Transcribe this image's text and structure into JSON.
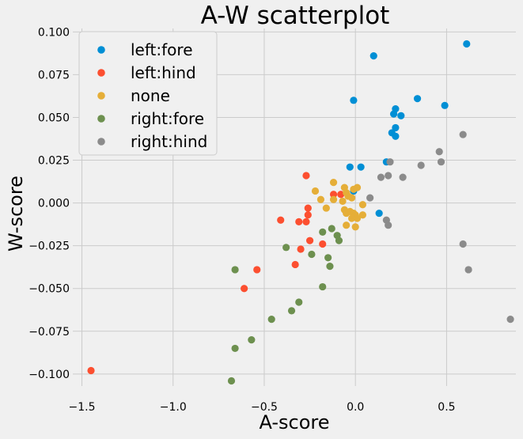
{
  "chart_data": {
    "type": "scatter",
    "title": "A-W scatterplot",
    "xlabel": "A-score",
    "ylabel": "W-score",
    "xlim": [
      -1.55,
      0.88
    ],
    "ylim": [
      -0.107,
      0.102
    ],
    "xticks": [
      -1.5,
      -1.0,
      -0.5,
      0.0,
      0.5
    ],
    "xtick_labels": [
      "−1.5",
      "−1.0",
      "−0.5",
      "0.0",
      "0.5"
    ],
    "yticks": [
      -0.1,
      -0.075,
      -0.05,
      -0.025,
      0.0,
      0.025,
      0.05,
      0.075,
      0.1
    ],
    "ytick_labels": [
      "−0.100",
      "−0.075",
      "−0.050",
      "−0.025",
      "0.000",
      "0.025",
      "0.050",
      "0.075",
      "0.100"
    ],
    "grid": true,
    "legend_position": "top-left",
    "series": [
      {
        "name": "left:fore",
        "color": "#008fd5",
        "points": [
          [
            0.61,
            0.093
          ],
          [
            0.1,
            0.086
          ],
          [
            -0.01,
            0.06
          ],
          [
            0.34,
            0.061
          ],
          [
            0.49,
            0.057
          ],
          [
            0.22,
            0.055
          ],
          [
            0.21,
            0.052
          ],
          [
            0.25,
            0.051
          ],
          [
            0.22,
            0.044
          ],
          [
            0.2,
            0.041
          ],
          [
            0.22,
            0.039
          ],
          [
            0.17,
            0.024
          ],
          [
            -0.03,
            0.021
          ],
          [
            0.03,
            0.021
          ],
          [
            -0.01,
            0.007
          ],
          [
            0.13,
            -0.006
          ]
        ]
      },
      {
        "name": "left:hind",
        "color": "#fc4f30",
        "points": [
          [
            -1.45,
            -0.098
          ],
          [
            -0.27,
            0.016
          ],
          [
            -0.12,
            0.005
          ],
          [
            -0.08,
            0.005
          ],
          [
            -0.26,
            -0.003
          ],
          [
            -0.26,
            -0.007
          ],
          [
            -0.41,
            -0.01
          ],
          [
            -0.31,
            -0.011
          ],
          [
            -0.27,
            -0.011
          ],
          [
            -0.25,
            -0.022
          ],
          [
            -0.18,
            -0.024
          ],
          [
            -0.3,
            -0.027
          ],
          [
            -0.33,
            -0.036
          ],
          [
            -0.54,
            -0.039
          ],
          [
            -0.61,
            -0.05
          ]
        ]
      },
      {
        "name": "none",
        "color": "#e5ae38",
        "points": [
          [
            -0.12,
            0.012
          ],
          [
            -0.22,
            0.007
          ],
          [
            -0.06,
            0.009
          ],
          [
            -0.05,
            0.006
          ],
          [
            -0.01,
            0.008
          ],
          [
            0.01,
            0.009
          ],
          [
            -0.04,
            0.004
          ],
          [
            -0.12,
            0.002
          ],
          [
            -0.19,
            0.002
          ],
          [
            -0.07,
            0.001
          ],
          [
            -0.02,
            0.003
          ],
          [
            0.04,
            -0.001
          ],
          [
            -0.16,
            -0.003
          ],
          [
            -0.06,
            -0.004
          ],
          [
            -0.03,
            -0.005
          ],
          [
            -0.05,
            -0.006
          ],
          [
            -0.01,
            -0.006
          ],
          [
            0.0,
            -0.007
          ],
          [
            0.04,
            -0.007
          ],
          [
            -0.02,
            -0.009
          ],
          [
            0.01,
            -0.009
          ],
          [
            -0.05,
            -0.013
          ],
          [
            0.0,
            -0.014
          ]
        ]
      },
      {
        "name": "right:fore",
        "color": "#6d904f",
        "points": [
          [
            -0.38,
            -0.026
          ],
          [
            -0.18,
            -0.017
          ],
          [
            -0.13,
            -0.015
          ],
          [
            -0.1,
            -0.019
          ],
          [
            -0.09,
            -0.022
          ],
          [
            -0.24,
            -0.03
          ],
          [
            -0.15,
            -0.032
          ],
          [
            -0.14,
            -0.037
          ],
          [
            -0.66,
            -0.039
          ],
          [
            -0.18,
            -0.049
          ],
          [
            -0.31,
            -0.058
          ],
          [
            -0.35,
            -0.063
          ],
          [
            -0.46,
            -0.068
          ],
          [
            -0.57,
            -0.08
          ],
          [
            -0.66,
            -0.085
          ],
          [
            -0.68,
            -0.104
          ]
        ]
      },
      {
        "name": "right:hind",
        "color": "#8b8b8b",
        "points": [
          [
            0.59,
            0.04
          ],
          [
            0.46,
            0.03
          ],
          [
            0.47,
            0.024
          ],
          [
            0.19,
            0.024
          ],
          [
            0.36,
            0.022
          ],
          [
            0.18,
            0.016
          ],
          [
            0.14,
            0.015
          ],
          [
            0.26,
            0.015
          ],
          [
            0.08,
            0.003
          ],
          [
            0.17,
            -0.01
          ],
          [
            0.18,
            -0.013
          ],
          [
            0.59,
            -0.024
          ],
          [
            0.62,
            -0.039
          ],
          [
            0.85,
            -0.068
          ]
        ]
      }
    ]
  }
}
